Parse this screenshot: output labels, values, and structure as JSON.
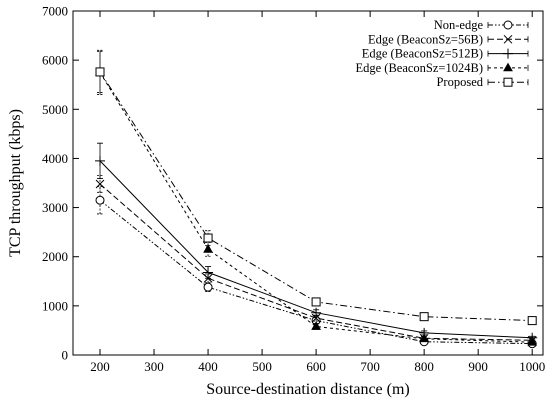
{
  "chart_data": {
    "type": "line",
    "title": "",
    "xlabel": "Source-destination distance (m)",
    "ylabel": "TCP throughput (kbps)",
    "xlim": [
      150,
      1020
    ],
    "ylim": [
      0,
      7000
    ],
    "xticks": [
      200,
      300,
      400,
      500,
      600,
      700,
      800,
      900,
      1000
    ],
    "yticks": [
      0,
      1000,
      2000,
      3000,
      4000,
      5000,
      6000,
      7000
    ],
    "grid": false,
    "legend_position": "top-right",
    "x": [
      200,
      400,
      600,
      800,
      1000
    ],
    "series": [
      {
        "name": "Non-edge",
        "values": [
          3150,
          1380,
          700,
          270,
          230
        ],
        "errors": [
          280,
          90,
          60,
          40,
          30
        ],
        "line_style": "dash-dot-dot",
        "marker": "circle",
        "color": "#000000"
      },
      {
        "name": "Edge (BeaconSz=56B)",
        "values": [
          3480,
          1560,
          750,
          340,
          300
        ],
        "errors": [
          170,
          90,
          60,
          40,
          30
        ],
        "line_style": "dashed",
        "marker": "x",
        "color": "#000000"
      },
      {
        "name": "Edge (BeaconSz=512B)",
        "values": [
          3950,
          1680,
          860,
          450,
          350
        ],
        "errors": [
          360,
          120,
          60,
          40,
          30
        ],
        "line_style": "solid",
        "marker": "plus",
        "color": "#000000"
      },
      {
        "name": "Edge (BeaconSz=1024B)",
        "values": [
          5750,
          2150,
          580,
          330,
          260
        ],
        "errors": [
          450,
          140,
          60,
          40,
          30
        ],
        "line_style": "short-dashed",
        "marker": "triangle",
        "color": "#000000"
      },
      {
        "name": "Proposed",
        "values": [
          5760,
          2380,
          1080,
          780,
          700
        ],
        "errors": [
          420,
          150,
          70,
          40,
          30
        ],
        "line_style": "dash-dot",
        "marker": "square",
        "color": "#000000"
      }
    ]
  }
}
